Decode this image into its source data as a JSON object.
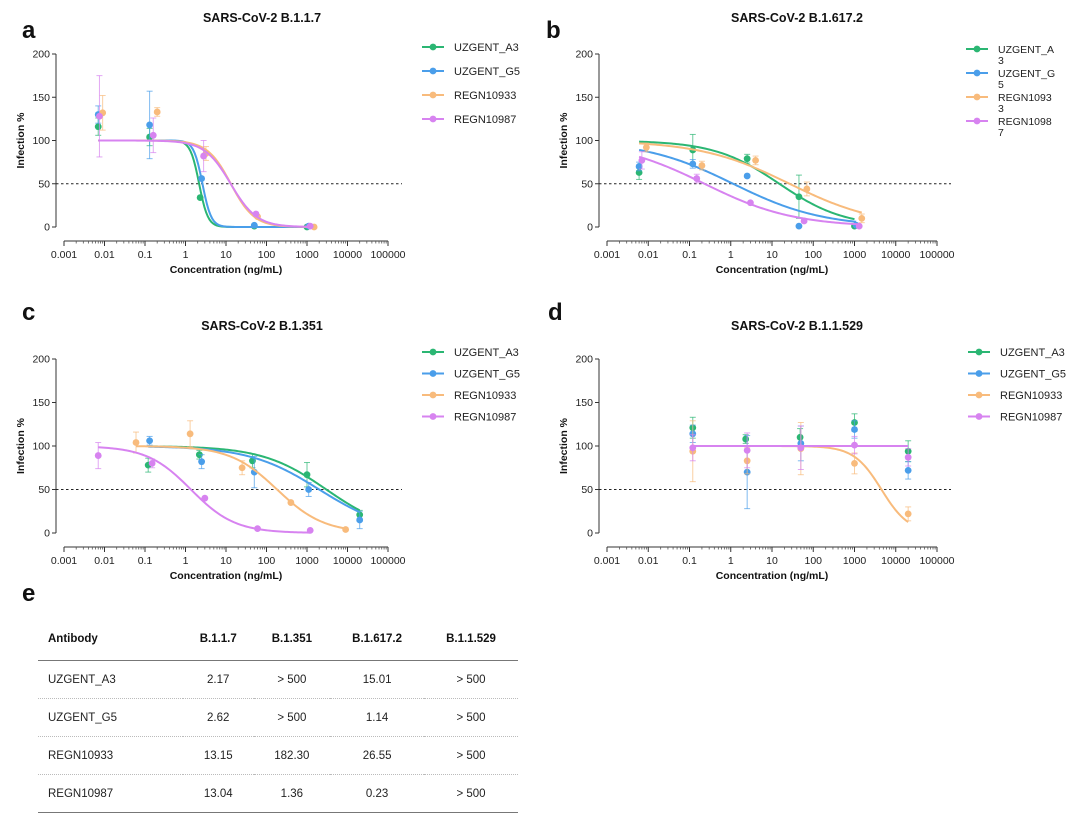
{
  "chart_data": [
    {
      "panel": "a",
      "type": "line",
      "title": "SARS-CoV-2 B.1.1.7",
      "xlabel": "Concentration (ng/mL)",
      "ylabel": "Infection %",
      "x_scale": "log",
      "xlim": [
        0.001,
        100000
      ],
      "ylim": [
        0,
        200
      ],
      "x_ticks": [
        "0.001",
        "0.01",
        "0.1",
        "1",
        "10",
        "100",
        "1000",
        "10000",
        "100000"
      ],
      "y_ticks": [
        "0",
        "50",
        "100",
        "150",
        "200"
      ],
      "reference_line": 50,
      "series": [
        {
          "name": "UZGENT_A3",
          "color": "#2bb673",
          "ic50": 2.17,
          "hill": 4.0,
          "points": [
            [
              0.007,
              116,
              10
            ],
            [
              0.13,
              104,
              10
            ],
            [
              2.3,
              34,
              0
            ],
            [
              50,
              1,
              0
            ],
            [
              1000,
              0,
              0
            ]
          ]
        },
        {
          "name": "UZGENT_G5",
          "color": "#4a9eea",
          "ic50": 2.62,
          "hill": 4.0,
          "points": [
            [
              0.007,
              130,
              10
            ],
            [
              0.13,
              118,
              39
            ],
            [
              2.5,
              56,
              0
            ],
            [
              50,
              2,
              0
            ],
            [
              1100,
              1,
              0
            ]
          ]
        },
        {
          "name": "REGN10933",
          "color": "#f8bb7c",
          "ic50": 13.15,
          "hill": 1.5,
          "points": [
            [
              0.009,
              132,
              20
            ],
            [
              0.2,
              133,
              5
            ],
            [
              3.2,
              85,
              8
            ],
            [
              60,
              12,
              0
            ],
            [
              1500,
              0,
              0
            ]
          ]
        },
        {
          "name": "REGN10987",
          "color": "#d783f0",
          "ic50": 13.04,
          "hill": 1.35,
          "points": [
            [
              0.0075,
              128,
              47
            ],
            [
              0.16,
              106,
              20
            ],
            [
              2.8,
              82,
              18
            ],
            [
              55,
              15,
              0
            ],
            [
              1200,
              1,
              0
            ]
          ]
        }
      ]
    },
    {
      "panel": "b",
      "type": "line",
      "title": "SARS-CoV-2 B.1.617.2",
      "xlabel": "Concentration (ng/mL)",
      "ylabel": "Infection %",
      "x_scale": "log",
      "xlim": [
        0.001,
        100000
      ],
      "ylim": [
        0,
        200
      ],
      "x_ticks": [
        "0.001",
        "0.01",
        "0.1",
        "1",
        "10",
        "100",
        "1000",
        "10000",
        "100000"
      ],
      "y_ticks": [
        "0",
        "50",
        "100",
        "150",
        "200"
      ],
      "reference_line": 50,
      "series": [
        {
          "name": "UZGENT_A\n3",
          "color": "#2bb673",
          "ic50": 15.01,
          "hill": 0.55,
          "points": [
            [
              0.006,
              63,
              8
            ],
            [
              0.12,
              89,
              18
            ],
            [
              2.5,
              79,
              5
            ],
            [
              45,
              35,
              25
            ],
            [
              1000,
              1,
              0
            ]
          ]
        },
        {
          "name": "UZGENT_G\n5",
          "color": "#4a9eea",
          "ic50": 1.14,
          "hill": 0.4,
          "points": [
            [
              0.006,
              70,
              5
            ],
            [
              0.12,
              73,
              5
            ],
            [
              2.5,
              59,
              0
            ],
            [
              45,
              1,
              0
            ],
            [
              1100,
              2,
              0
            ]
          ]
        },
        {
          "name": "REGN1093\n3",
          "color": "#f8bb7c",
          "ic50": 26.55,
          "hill": 0.4,
          "points": [
            [
              0.009,
              92,
              5
            ],
            [
              0.2,
              71,
              5
            ],
            [
              4,
              77,
              5
            ],
            [
              70,
              44,
              8
            ],
            [
              1500,
              10,
              5
            ]
          ]
        },
        {
          "name": "REGN1098\n7",
          "color": "#d783f0",
          "ic50": 0.23,
          "hill": 0.4,
          "points": [
            [
              0.007,
              77,
              10
            ],
            [
              0.15,
              56,
              5
            ],
            [
              3,
              28,
              0
            ],
            [
              60,
              7,
              0
            ],
            [
              1300,
              1,
              0
            ]
          ]
        }
      ]
    },
    {
      "panel": "c",
      "type": "line",
      "title": "SARS-CoV-2 B.1.351",
      "xlabel": "Concentration (ng/mL)",
      "ylabel": "Infection %",
      "x_scale": "log",
      "xlim": [
        0.001,
        100000
      ],
      "ylim": [
        0,
        200
      ],
      "x_ticks": [
        "0.001",
        "0.01",
        "0.1",
        "1",
        "10",
        "100",
        "1000",
        "10000",
        "100000"
      ],
      "y_ticks": [
        "0",
        "50",
        "100",
        "150",
        "200"
      ],
      "reference_line": 50,
      "series": [
        {
          "name": "UZGENT_A3",
          "color": "#2bb673",
          "ic50": 3000,
          "hill": 0.55,
          "x_start": 0.12,
          "x_end": 20000,
          "points": [
            [
              0.12,
              78,
              8
            ],
            [
              2.2,
              90,
              5
            ],
            [
              45,
              83,
              8
            ],
            [
              1000,
              67,
              14
            ],
            [
              20000,
              21,
              5
            ]
          ]
        },
        {
          "name": "UZGENT_G5",
          "color": "#4a9eea",
          "ic50": 2000,
          "hill": 0.5,
          "x_start": 0.12,
          "x_end": 20000,
          "points": [
            [
              0.13,
              106,
              5
            ],
            [
              2.5,
              82,
              8
            ],
            [
              50,
              70,
              18
            ],
            [
              1100,
              50,
              8
            ],
            [
              20000,
              15,
              10
            ]
          ]
        },
        {
          "name": "REGN10933",
          "color": "#f8bb7c",
          "ic50": 182.3,
          "hill": 0.75,
          "x_start": 0.06,
          "x_end": 9000,
          "points": [
            [
              0.06,
              104,
              12
            ],
            [
              1.3,
              114,
              15
            ],
            [
              25,
              75,
              8
            ],
            [
              400,
              35,
              0
            ],
            [
              9000,
              4,
              0
            ]
          ]
        },
        {
          "name": "REGN10987",
          "color": "#d783f0",
          "ic50": 1.36,
          "hill": 0.8,
          "x_start": 0.007,
          "x_end": 1200,
          "points": [
            [
              0.007,
              89,
              15
            ],
            [
              0.15,
              80,
              5
            ],
            [
              3,
              40,
              0
            ],
            [
              60,
              5,
              0
            ],
            [
              1200,
              3,
              0
            ]
          ]
        }
      ]
    },
    {
      "panel": "d",
      "type": "line",
      "title": "SARS-CoV-2 B.1.1.529",
      "xlabel": "Concentration (ng/mL)",
      "ylabel": "Infection %",
      "x_scale": "log",
      "xlim": [
        0.001,
        100000
      ],
      "ylim": [
        0,
        200
      ],
      "x_ticks": [
        "0.001",
        "0.01",
        "0.1",
        "1",
        "10",
        "100",
        "1000",
        "10000",
        "100000"
      ],
      "y_ticks": [
        "0",
        "50",
        "100",
        "150",
        "200"
      ],
      "reference_line": 50,
      "series": [
        {
          "name": "UZGENT_A3",
          "color": "#2bb673",
          "ic50": 500000,
          "hill": 8,
          "x_start": 0.12,
          "x_end": 20000,
          "points": [
            [
              0.12,
              121,
              12
            ],
            [
              2.3,
              108,
              5
            ],
            [
              48,
              110,
              10
            ],
            [
              1000,
              127,
              10
            ],
            [
              20000,
              94,
              12
            ]
          ]
        },
        {
          "name": "UZGENT_G5",
          "color": "#4a9eea",
          "ic50": 500000,
          "hill": 8,
          "x_start": 0.12,
          "x_end": 20000,
          "points": [
            [
              0.12,
              114,
              10
            ],
            [
              2.5,
              70,
              42
            ],
            [
              50,
              103,
              20
            ],
            [
              1000,
              119,
              10
            ],
            [
              20000,
              72,
              10
            ]
          ]
        },
        {
          "name": "REGN10933",
          "color": "#f8bb7c",
          "ic50": 4500,
          "hill": 1.3,
          "x_start": 0.12,
          "x_end": 20000,
          "points": [
            [
              0.12,
              94,
              35
            ],
            [
              2.5,
              83,
              15
            ],
            [
              50,
              97,
              30
            ],
            [
              1000,
              80,
              12
            ],
            [
              20000,
              22,
              8
            ]
          ]
        },
        {
          "name": "REGN10987",
          "color": "#d783f0",
          "ic50": 500000,
          "hill": 8,
          "x_start": 0.12,
          "x_end": 20000,
          "points": [
            [
              0.12,
              98,
              15
            ],
            [
              2.5,
              95,
              20
            ],
            [
              50,
              98,
              25
            ],
            [
              1000,
              101,
              10
            ],
            [
              20000,
              87,
              10
            ]
          ]
        }
      ]
    },
    {
      "panel": "e",
      "type": "table",
      "columns": [
        "Antibody",
        "B.1.1.7",
        "B.1.351",
        "B.1.617.2",
        "B.1.1.529"
      ],
      "rows": [
        [
          "UZGENT_A3",
          "2.17",
          "> 500",
          "15.01",
          "> 500"
        ],
        [
          "UZGENT_G5",
          "2.62",
          "> 500",
          "1.14",
          "> 500"
        ],
        [
          "REGN10933",
          "13.15",
          "182.30",
          "26.55",
          "> 500"
        ],
        [
          "REGN10987",
          "13.04",
          "1.36",
          "0.23",
          "> 500"
        ]
      ]
    }
  ]
}
